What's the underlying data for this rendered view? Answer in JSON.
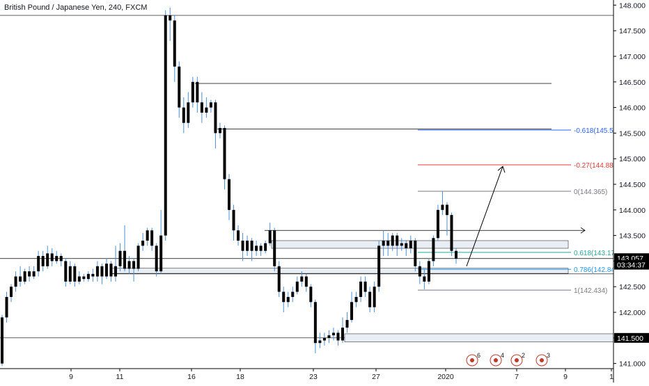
{
  "header": {
    "title": "British Pound / Japanese Yen, 240, FXCM"
  },
  "colors": {
    "candle": "#000000",
    "wick_light": "#4a90d9",
    "grid": "#000000",
    "axis_bg": "#ffffff",
    "fib_neg618": "#2962ff",
    "fib_neg27": "#e53935",
    "fib_618": "#26a69a",
    "fib_786": "#2196f3",
    "fib_gray": "#787b86",
    "zone_fill": "#e9eef5",
    "zone_border": "#000000"
  },
  "chart_data": {
    "type": "candlestick",
    "y_axis": {
      "ylim": [
        140.9,
        148.1
      ],
      "ticks": [
        "148.000",
        "147.500",
        "147.000",
        "146.500",
        "146.000",
        "145.500",
        "145.000",
        "144.500",
        "144.000",
        "143.500",
        "143.000",
        "142.500",
        "142.000",
        "141.500",
        "141.000"
      ]
    },
    "x_axis": {
      "ticks": [
        "9",
        "11",
        "16",
        "18",
        "23",
        "27",
        "2020",
        "7",
        "9",
        "1"
      ]
    },
    "price_labels": [
      {
        "value": 143.057,
        "text": "143.057",
        "bg": "#000000",
        "color": "#ffffff"
      },
      {
        "value": 142.93,
        "text": "03:34:37",
        "bg": "#000000",
        "color": "#ffffff"
      },
      {
        "value": 141.5,
        "text": "141.500",
        "bg": "#000000",
        "color": "#ffffff"
      }
    ],
    "fib_levels": [
      {
        "value": 145.56,
        "text": "-0.618(145.5",
        "color": "#2962ff"
      },
      {
        "value": 144.88,
        "text": "-0.27(144.88",
        "color": "#e53935"
      },
      {
        "value": 144.365,
        "text": "0(144.365)",
        "color": "#787b86"
      },
      {
        "value": 143.17,
        "text": "0.618(143.17",
        "color": "#26a69a"
      },
      {
        "value": 142.84,
        "text": "0.786(142.84",
        "color": "#2196f3"
      },
      {
        "value": 142.434,
        "text": "1(142.434)",
        "color": "#787b86"
      }
    ],
    "horizontal_lines": [
      147.8,
      146.47,
      145.58,
      143.6,
      143.05,
      142.75,
      141.5
    ],
    "candles": [
      [
        141.0,
        141.9,
        140.95,
        141.95
      ],
      [
        141.9,
        142.3,
        141.8,
        142.4
      ],
      [
        142.3,
        142.5,
        142.2,
        142.55
      ],
      [
        142.5,
        142.7,
        142.4,
        142.8
      ],
      [
        142.7,
        142.6,
        142.5,
        142.9
      ],
      [
        142.6,
        142.8,
        142.55,
        142.85
      ],
      [
        142.8,
        142.7,
        142.6,
        142.9
      ],
      [
        142.7,
        142.8,
        142.65,
        142.9
      ],
      [
        142.8,
        143.1,
        142.7,
        143.2
      ],
      [
        143.1,
        142.9,
        142.8,
        143.2
      ],
      [
        142.9,
        143.15,
        142.85,
        143.3
      ],
      [
        143.15,
        143.0,
        142.9,
        143.25
      ],
      [
        143.0,
        143.1,
        142.95,
        143.2
      ],
      [
        143.1,
        143.0,
        142.9,
        143.15
      ],
      [
        143.0,
        142.6,
        142.5,
        143.05
      ],
      [
        142.6,
        142.9,
        142.55,
        143.0
      ],
      [
        142.9,
        142.6,
        142.5,
        142.95
      ],
      [
        142.6,
        142.7,
        142.55,
        142.8
      ],
      [
        142.7,
        142.65,
        142.6,
        142.75
      ],
      [
        142.65,
        142.75,
        142.6,
        142.8
      ],
      [
        142.75,
        142.7,
        142.6,
        142.85
      ],
      [
        142.7,
        142.9,
        142.6,
        143.0
      ],
      [
        142.9,
        142.7,
        142.55,
        142.95
      ],
      [
        142.7,
        142.95,
        142.65,
        143.05
      ],
      [
        142.95,
        142.7,
        142.6,
        143.0
      ],
      [
        142.7,
        142.9,
        142.6,
        143.3
      ],
      [
        142.9,
        143.2,
        142.8,
        143.35
      ],
      [
        143.2,
        142.85,
        142.8,
        143.7
      ],
      [
        142.85,
        143.0,
        142.75,
        143.1
      ],
      [
        143.0,
        142.85,
        142.6,
        143.05
      ],
      [
        142.85,
        143.3,
        142.8,
        143.35
      ],
      [
        143.3,
        143.4,
        143.2,
        143.55
      ],
      [
        143.4,
        143.6,
        143.3,
        143.65
      ],
      [
        143.6,
        143.3,
        143.2,
        143.65
      ],
      [
        143.3,
        142.8,
        142.7,
        143.35
      ],
      [
        142.8,
        143.5,
        142.75,
        144.0
      ],
      [
        143.5,
        147.8,
        143.4,
        147.9
      ],
      [
        147.8,
        147.7,
        147.3,
        147.95
      ],
      [
        147.7,
        146.8,
        146.5,
        147.8
      ],
      [
        146.8,
        146.0,
        145.8,
        146.9
      ],
      [
        146.0,
        145.7,
        145.5,
        146.2
      ],
      [
        145.7,
        146.1,
        145.6,
        146.3
      ],
      [
        146.1,
        146.5,
        146.0,
        146.6
      ],
      [
        146.5,
        146.1,
        145.9,
        146.6
      ],
      [
        146.1,
        145.9,
        145.7,
        146.3
      ],
      [
        145.9,
        146.0,
        145.8,
        146.2
      ],
      [
        146.0,
        146.1,
        145.9,
        146.15
      ],
      [
        146.1,
        145.5,
        145.2,
        146.15
      ],
      [
        145.5,
        145.6,
        145.4,
        145.7
      ],
      [
        145.6,
        144.6,
        144.4,
        145.65
      ],
      [
        144.6,
        144.0,
        143.8,
        144.7
      ],
      [
        144.0,
        143.6,
        143.4,
        144.1
      ],
      [
        143.6,
        143.4,
        143.3,
        143.7
      ],
      [
        143.4,
        143.2,
        143.0,
        143.55
      ],
      [
        143.2,
        143.4,
        143.1,
        143.5
      ],
      [
        143.4,
        143.2,
        143.0,
        143.45
      ],
      [
        143.2,
        143.3,
        143.1,
        143.4
      ],
      [
        143.3,
        143.2,
        143.1,
        143.35
      ],
      [
        143.2,
        143.35,
        143.15,
        143.4
      ],
      [
        143.35,
        143.6,
        143.3,
        143.75
      ],
      [
        143.6,
        142.9,
        142.8,
        143.65
      ],
      [
        142.9,
        142.4,
        142.3,
        143.0
      ],
      [
        142.4,
        142.2,
        142.0,
        142.5
      ],
      [
        142.2,
        142.3,
        142.1,
        142.4
      ],
      [
        142.3,
        142.4,
        142.2,
        142.5
      ],
      [
        142.4,
        142.6,
        142.35,
        142.7
      ],
      [
        142.6,
        142.7,
        142.5,
        142.8
      ],
      [
        142.7,
        142.5,
        142.4,
        142.75
      ],
      [
        142.5,
        142.2,
        142.1,
        142.55
      ],
      [
        142.2,
        141.4,
        141.2,
        142.25
      ],
      [
        141.4,
        141.45,
        141.3,
        141.6
      ],
      [
        141.45,
        141.5,
        141.35,
        141.6
      ],
      [
        141.5,
        141.55,
        141.4,
        141.65
      ],
      [
        141.55,
        141.6,
        141.45,
        141.7
      ],
      [
        141.6,
        141.45,
        141.35,
        141.65
      ],
      [
        141.45,
        141.7,
        141.4,
        141.9
      ],
      [
        141.7,
        141.85,
        141.6,
        142.0
      ],
      [
        141.85,
        142.2,
        141.8,
        142.4
      ],
      [
        142.2,
        142.3,
        142.1,
        142.4
      ],
      [
        142.3,
        142.6,
        142.2,
        142.7
      ],
      [
        142.6,
        142.4,
        142.3,
        142.7
      ],
      [
        142.4,
        142.1,
        142.0,
        142.5
      ],
      [
        142.1,
        142.5,
        142.0,
        142.6
      ],
      [
        142.5,
        143.3,
        142.4,
        143.4
      ],
      [
        143.3,
        143.4,
        143.1,
        143.6
      ],
      [
        143.4,
        143.3,
        143.1,
        143.55
      ],
      [
        143.3,
        143.5,
        143.2,
        143.55
      ],
      [
        143.5,
        143.3,
        143.1,
        143.55
      ],
      [
        143.3,
        143.35,
        143.2,
        143.45
      ],
      [
        143.35,
        143.25,
        143.1,
        143.4
      ],
      [
        143.25,
        143.4,
        143.15,
        143.5
      ],
      [
        143.4,
        142.9,
        142.8,
        143.45
      ],
      [
        142.9,
        142.7,
        142.55,
        143.0
      ],
      [
        142.7,
        142.6,
        142.45,
        142.85
      ],
      [
        142.6,
        143.0,
        142.55,
        143.05
      ],
      [
        143.0,
        143.45,
        142.9,
        143.5
      ],
      [
        143.45,
        144.0,
        143.4,
        144.1
      ],
      [
        144.0,
        144.1,
        143.9,
        144.365
      ],
      [
        144.1,
        143.9,
        143.5,
        144.15
      ],
      [
        143.9,
        143.2,
        143.1,
        143.95
      ],
      [
        143.2,
        143.05,
        142.95,
        143.25
      ]
    ]
  },
  "markers": {
    "labels": [
      "6",
      "4",
      "2",
      "3"
    ]
  }
}
